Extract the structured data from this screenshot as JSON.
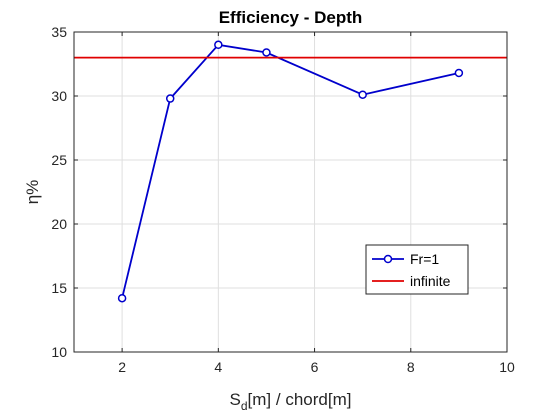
{
  "chart_data": {
    "type": "line",
    "title": "Efficiency - Depth",
    "xlabel_main": "S",
    "xlabel_sub": "d",
    "xlabel_rest": "[m] / chord[m]",
    "ylabel": "η%",
    "xlim": [
      1,
      10
    ],
    "ylim": [
      10,
      35
    ],
    "xticks": [
      2,
      4,
      6,
      8,
      10
    ],
    "yticks": [
      10,
      15,
      20,
      25,
      30,
      35
    ],
    "grid": true,
    "legend_position": "lower-right",
    "series": [
      {
        "name": "Fr=1",
        "color": "#0000cc",
        "marker": "circle",
        "x": [
          2,
          3,
          4,
          5,
          7,
          9
        ],
        "y": [
          14.2,
          29.8,
          34.0,
          33.4,
          30.1,
          31.8
        ]
      },
      {
        "name": "infinite",
        "color": "#e00000",
        "marker": "none",
        "x": [
          1,
          10
        ],
        "y": [
          33.0,
          33.0
        ]
      }
    ]
  }
}
